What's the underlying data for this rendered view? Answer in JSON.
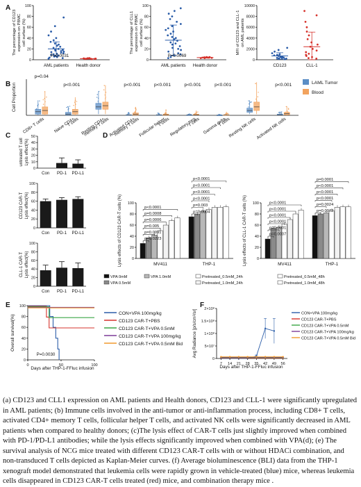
{
  "panels": {
    "A": {
      "letter": "A",
      "charts": [
        {
          "ylabel_lines": [
            "The percentage of CD123",
            "expression on PBMC",
            "cell surface (%)"
          ],
          "categories": [
            "AML patients",
            "Health donor"
          ],
          "yticks": [
            "100",
            "80",
            "60",
            "40",
            "20",
            "0"
          ],
          "pvalue": "P=0.0031",
          "type": "scatter",
          "ylim": [
            0,
            100
          ],
          "groups": [
            {
              "mean": 20,
              "sd": 13,
              "color": "#2a5ca8",
              "points": [
                2,
                3,
                4,
                5,
                6,
                7,
                8,
                9,
                10,
                11,
                12,
                13,
                14,
                15,
                16,
                17,
                18,
                19,
                20,
                22,
                24,
                26,
                28,
                30,
                33,
                36,
                40,
                45,
                52,
                62,
                78
              ]
            },
            {
              "mean": 2,
              "sd": 0.8,
              "color": "#d6322b",
              "points": [
                1,
                1.5,
                2,
                2.5,
                3,
                2,
                1.5,
                2.8
              ]
            }
          ]
        },
        {
          "ylabel_lines": [
            "The percentage of CLL1",
            "expression on PBMC",
            "cell surface (%)"
          ],
          "categories": [
            "AML patients",
            "Health donor"
          ],
          "yticks": [
            "100",
            "80",
            "60",
            "40",
            "20",
            "0"
          ],
          "pvalue": "P=0.0069",
          "type": "scatter",
          "ylim": [
            0,
            100
          ],
          "groups": [
            {
              "mean": 36,
              "sd": 28,
              "color": "#2a5ca8",
              "points": [
                3,
                5,
                8,
                10,
                12,
                15,
                18,
                20,
                22,
                25,
                28,
                30,
                32,
                35,
                38,
                40,
                42,
                45,
                48,
                52,
                55,
                58,
                62,
                66,
                70,
                75,
                80,
                85,
                90,
                95
              ]
            },
            {
              "mean": 4,
              "sd": 1,
              "color": "#d6322b",
              "points": [
                3,
                4,
                5,
                3.5,
                4.5,
                3,
                4,
                5
              ]
            }
          ]
        },
        {
          "ylabel_lines": [
            "MFI of CD123 and CLL-1",
            "on AML patients"
          ],
          "categories": [
            "CD123",
            "CLL-1"
          ],
          "yticks": [
            "10000",
            "8000",
            "6000",
            "4000",
            "2000",
            "0"
          ],
          "pvalue": "",
          "type": "scatter",
          "ylim": [
            0,
            10000
          ],
          "groups": [
            {
              "mean": 700,
              "sd": 600,
              "color": "#2a5ca8",
              "points": [
                100,
                150,
                200,
                250,
                300,
                350,
                400,
                500,
                600,
                700,
                800,
                900,
                1000,
                1200,
                1500,
                1800,
                2200
              ]
            },
            {
              "mean": 2400,
              "sd": 2700,
              "color": "#d6322b",
              "points": [
                200,
                300,
                500,
                700,
                900,
                1100,
                1400,
                1700,
                2000,
                2400,
                2800,
                3200,
                3800,
                4500,
                5200,
                6000,
                7000,
                8200,
                9000
              ]
            }
          ]
        }
      ]
    },
    "B": {
      "letter": "B",
      "ylabel": "Cell Proportion",
      "legend": [
        {
          "label": "LAML Tumor",
          "color": "#5b8ec6"
        },
        {
          "label": "Blood",
          "color": "#f2a35e"
        }
      ],
      "chart_data": {
        "type": "box",
        "categories": [
          "CD8+ T cells",
          "Naive CD4+ T cells",
          "Resting  CD4+ memory T cells",
          "Activated CD4+ memory T cells",
          "Follicular helper T cells",
          "Regulatory Treg cells",
          "Gamma delta T cells",
          "Resting NK cells",
          "Activated NK cells"
        ],
        "tick_lines": [
          [
            "CD8+ T cells"
          ],
          [
            "Naive CD4+",
            "T cells"
          ],
          [
            "Resting  CD4+",
            "memory T cells"
          ],
          [
            "Activated CD4+",
            "memory T cells"
          ],
          [
            "Follicular helper",
            "T cells"
          ],
          [
            "Regulatory treg",
            "T cells"
          ],
          [
            "Gamma delta",
            "T cells"
          ],
          [
            "Resting NK cells"
          ],
          [
            "Activated NK cells"
          ]
        ],
        "pvalues": [
          "p=0.04",
          "p<0.001",
          "",
          "p<0.001",
          "p<0.001",
          "p<0.001",
          "p<0.001",
          "",
          "p<0.001"
        ],
        "series": [
          {
            "name": "LAML Tumor",
            "boxes": [
              [
                0,
                0.02,
                0.06,
                0.1,
                0.25
              ],
              [
                0,
                0.005,
                0.02,
                0.05,
                0.15
              ],
              [
                0.02,
                0.1,
                0.14,
                0.2,
                0.4
              ],
              [
                0,
                0,
                0.005,
                0.01,
                0.05
              ],
              [
                0,
                0,
                0.005,
                0.01,
                0.04
              ],
              [
                0,
                0,
                0.003,
                0.008,
                0.03
              ],
              [
                0,
                0,
                0.002,
                0.005,
                0.02
              ],
              [
                0.02,
                0.05,
                0.08,
                0.12,
                0.25
              ],
              [
                0,
                0.005,
                0.01,
                0.02,
                0.06
              ]
            ]
          },
          {
            "name": "Blood",
            "boxes": [
              [
                0,
                0.02,
                0.08,
                0.14,
                0.4
              ],
              [
                0,
                0.02,
                0.06,
                0.1,
                0.3
              ],
              [
                0.02,
                0.1,
                0.16,
                0.22,
                0.5
              ],
              [
                0,
                0.005,
                0.02,
                0.04,
                0.14
              ],
              [
                0,
                0,
                0.01,
                0.02,
                0.1
              ],
              [
                0,
                0.005,
                0.01,
                0.02,
                0.08
              ],
              [
                0,
                0,
                0.005,
                0.01,
                0.06
              ],
              [
                0.02,
                0.08,
                0.14,
                0.22,
                0.55
              ],
              [
                0,
                0.01,
                0.03,
                0.05,
                0.15
              ]
            ]
          }
        ]
      }
    },
    "C": {
      "letter": "C",
      "categories": [
        "Con",
        "PD-1",
        "PD-L1"
      ],
      "charts": [
        {
          "ylabel_lines": [
            "untreated T cell",
            "Lysis effect(%)"
          ],
          "yticks": [
            "50",
            "40",
            "30",
            "20",
            "10",
            "0"
          ],
          "ylim": [
            0,
            50
          ],
          "values": [
            0,
            8,
            7
          ],
          "errors": [
            0,
            8,
            6
          ]
        },
        {
          "ylabel_lines": [
            "CD123 CAR-T",
            "Lysis effect(%)"
          ],
          "yticks": [
            "100",
            "80",
            "60",
            "40",
            "20",
            "0"
          ],
          "ylim": [
            0,
            100
          ],
          "values": [
            60,
            63,
            65
          ],
          "errors": [
            5,
            5,
            5
          ]
        },
        {
          "ylabel_lines": [
            "CLL-1 CAR-T",
            "Lysis effect(%)"
          ],
          "yticks": [
            "100",
            "80",
            "60",
            "40",
            "20",
            "0"
          ],
          "ylim": [
            0,
            100
          ],
          "values": [
            37,
            43,
            42
          ],
          "errors": [
            12,
            14,
            12
          ]
        }
      ]
    },
    "D": {
      "letter": "D",
      "legend": [
        "VPA 0mM",
        "VPA 0.5mM",
        "VPA 1.0mM",
        "Pretreated_0.5mM_24h",
        "Pretreated_1.0mM_24h",
        "Pretreated_0.5mM_48h",
        "Pretreated_1.0mM_48h"
      ],
      "legend_colors": [
        "#111111",
        "#8a8a8a",
        "#b8b8b8",
        "#ffffff",
        "#f2f2f2",
        "#ffffff",
        "#ffffff"
      ],
      "charts": [
        {
          "ylabel": "Lysis effects of CD123  CAR-T cells (%)",
          "groups": [
            "MV411",
            "THP-1"
          ],
          "yticks": [
            "100",
            "80",
            "60",
            "40",
            "20",
            "0"
          ],
          "ylim": [
            0,
            100
          ],
          "values": [
            [
              27,
              37,
              42,
              50,
              60,
              68,
              73
            ],
            [
              75,
              80,
              85,
              88,
              92,
              92,
              93
            ]
          ],
          "brackets_mv": [
            "p=0.0223",
            "p=0.0091",
            "p=0.005",
            "p=0.0006",
            "p=0.0008",
            "p<0.0001"
          ],
          "brackets_thp": [
            "p=0.0004",
            "p=0.003",
            "p<0.0001",
            "p<0.0001",
            "p<0.0001",
            "p<0.0001"
          ]
        },
        {
          "ylabel": "Lysis effects of CLL-1 CAR-T cells (%)",
          "groups": [
            "MV411",
            "THP-1"
          ],
          "yticks": [
            "100",
            "80",
            "60",
            "40",
            "20",
            "0"
          ],
          "ylim": [
            0,
            100
          ],
          "values": [
            [
              35,
              54,
              56,
              62,
              70,
              80,
              87
            ],
            [
              77,
              80,
              82,
              86,
              92,
              93,
              93
            ]
          ],
          "brackets_mv": [
            "p=0.0007",
            "p=0.0001",
            "p<0.0001",
            "p<0.0001",
            "p<0.0001",
            "p<0.0001"
          ],
          "brackets_thp": [
            "p=0.0072",
            "p=0.0024",
            "p<0.0001",
            "p<0.0001",
            "p<0.0001",
            "p=0.0001"
          ]
        }
      ]
    },
    "E": {
      "letter": "E",
      "ylabel": "Overall survival(%)",
      "xlabel": "Days after THP-1-FFluc infusion",
      "yticks": [
        "100",
        "80",
        "60",
        "40",
        "20",
        "0"
      ],
      "xticks": [
        "0",
        "50",
        "100"
      ],
      "xlim": [
        0,
        100
      ],
      "ylim": [
        0,
        100
      ],
      "pvalue": "P=0.0030",
      "series": [
        {
          "name": "CON+VPA 100mg/kg",
          "color": "#2a5ca8",
          "steps": [
            [
              0,
              100
            ],
            [
              30,
              100
            ],
            [
              33,
              80
            ],
            [
              38,
              60
            ],
            [
              42,
              40
            ],
            [
              45,
              20
            ],
            [
              47,
              0
            ]
          ]
        },
        {
          "name": "CD123 CAR-T+PBS",
          "color": "#d6322b",
          "steps": [
            [
              0,
              100
            ],
            [
              25,
              100
            ],
            [
              28,
              80
            ],
            [
              32,
              60
            ],
            [
              100,
              60
            ]
          ]
        },
        {
          "name": "CD123 CAR-T+VPA 0.5mM",
          "color": "#3aa545",
          "steps": [
            [
              0,
              100
            ],
            [
              28,
              100
            ],
            [
              32,
              80
            ],
            [
              100,
              80
            ]
          ]
        },
        {
          "name": "CD123 CAR-T+VPA 100mg/kg",
          "color": "#7d3c98",
          "steps": [
            [
              0,
              100
            ],
            [
              100,
              100
            ]
          ]
        },
        {
          "name": "CD123 CAR-T+VPA 0.5mM Bid",
          "color": "#f09a2e",
          "steps": [
            [
              0,
              100
            ],
            [
              100,
              100
            ]
          ]
        }
      ]
    },
    "F": {
      "letter": "F",
      "ylabel": "Avg Radiance [p/s/cm²/sr]",
      "xlabel": "Days after THP-1-FFluc infusion",
      "xticks": [
        "7",
        "14",
        "21",
        "28",
        "35",
        "42",
        "49",
        "56"
      ],
      "yticks": [
        "2×10⁸",
        "1.5×10⁸",
        "1×10⁸",
        "5×10⁷",
        "0"
      ],
      "ylim": [
        0,
        200000000
      ],
      "series": [
        {
          "name": "CON+VPA 100mg/kg",
          "color": "#2a5ca8",
          "values": [
            0,
            0,
            0,
            0,
            10000000,
            120000000,
            110000000,
            null
          ],
          "err": [
            0,
            0,
            0,
            0,
            4000000,
            40000000,
            50000000,
            0
          ]
        },
        {
          "name": "CD123 CAR-T+PBS",
          "color": "#d6322b",
          "values": [
            0,
            0,
            0,
            0,
            0,
            0,
            0,
            0
          ],
          "err": [
            0,
            0,
            0,
            0,
            0,
            0,
            0,
            0
          ]
        },
        {
          "name": "CD123 CAR-T+VPA 0.5mM",
          "color": "#3aa545",
          "values": [
            0,
            0,
            0,
            0,
            0,
            0,
            0,
            0
          ],
          "err": [
            0,
            0,
            0,
            0,
            0,
            0,
            0,
            0
          ]
        },
        {
          "name": "CD123 CAR-T+VPA 100mg/kg",
          "color": "#7d3c98",
          "values": [
            0,
            0,
            0,
            0,
            0,
            0,
            0,
            0
          ],
          "err": [
            0,
            0,
            0,
            0,
            0,
            0,
            0,
            0
          ]
        },
        {
          "name": "CD123 CAR-T+VPA 0.5mM Bid",
          "color": "#f09a2e",
          "values": [
            0,
            0,
            0,
            0,
            0,
            0,
            0,
            0
          ],
          "err": [
            0,
            0,
            0,
            0,
            0,
            0,
            0,
            0
          ]
        }
      ]
    }
  },
  "caption": "(a) CD123 and CLL1 expression on AML patients and Health donors, CD123 and CLL-1 were significantly upregulated in AML patients; (b) Immune cells involved in the anti-tumor or anti-inflammation process, including CD8+ T cells, activated CD4+ memory T cells, follicular helper T cells, and activated NK cells were significantly decreased in AML patients when compared to healthy donors; (c)The lysis effect of CAR-T cells just slightly improved when combined with PD-1/PD-L1 antibodies; while the lysis effects significantly improved when combined with VPA(d); (e) The survival analysis of NCG mice treated with different CD123 CAR-T cells with or without HDACi combination, and non-transduced T cells depicted as Kaplan-Meier curves. (f) Average bioluminescence (BLI) data from the THP-1 xenograft model demonstrated that leukemia cells were rapidly grown in vehicle-treated (blue) mice, whereas leukemia  cells disappeared in CD123 CAR-T cells treated (red) mice, and combination therapy mice ."
}
